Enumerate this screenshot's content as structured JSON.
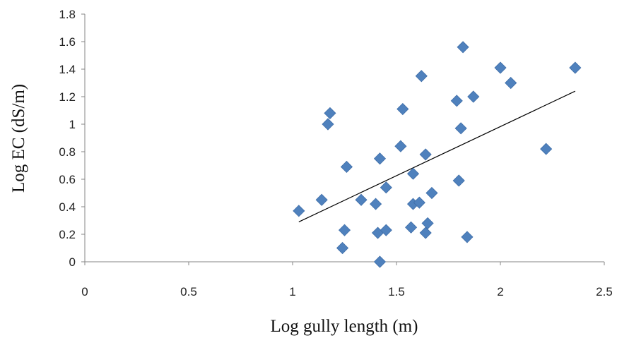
{
  "chart_data": {
    "type": "scatter",
    "title": "",
    "xlabel": "Log gully length (m)",
    "ylabel": "Log EC (dS/m)",
    "xlim": [
      0,
      2.5
    ],
    "ylim": [
      0,
      1.8
    ],
    "x_ticks": [
      0,
      0.5,
      1,
      1.5,
      2,
      2.5
    ],
    "x_tick_labels": [
      "0",
      "0.5",
      "1",
      "1.5",
      "2",
      "2.5"
    ],
    "y_ticks": [
      0,
      0.2,
      0.4,
      0.6,
      0.8,
      1,
      1.2,
      1.4,
      1.6,
      1.8
    ],
    "y_tick_labels": [
      "0",
      "0.2",
      "0.4",
      "0.6",
      "0.8",
      "1",
      "1.2",
      "1.4",
      "1.6",
      "1.8"
    ],
    "grid": false,
    "marker": "diamond",
    "marker_color": "#4f81bd",
    "trendline": {
      "type": "linear",
      "x": [
        1.03,
        2.36
      ],
      "y": [
        0.29,
        1.24
      ],
      "color": "#000000"
    },
    "series": [
      {
        "points": [
          [
            1.03,
            0.37
          ],
          [
            1.14,
            0.45
          ],
          [
            1.17,
            1.0
          ],
          [
            1.18,
            1.08
          ],
          [
            1.24,
            0.1
          ],
          [
            1.25,
            0.23
          ],
          [
            1.26,
            0.69
          ],
          [
            1.33,
            0.45
          ],
          [
            1.4,
            0.42
          ],
          [
            1.41,
            0.21
          ],
          [
            1.42,
            0.75
          ],
          [
            1.42,
            0.0
          ],
          [
            1.45,
            0.23
          ],
          [
            1.45,
            0.54
          ],
          [
            1.52,
            0.84
          ],
          [
            1.53,
            1.11
          ],
          [
            1.57,
            0.25
          ],
          [
            1.58,
            0.64
          ],
          [
            1.58,
            0.42
          ],
          [
            1.61,
            0.43
          ],
          [
            1.62,
            1.35
          ],
          [
            1.64,
            0.78
          ],
          [
            1.64,
            0.21
          ],
          [
            1.65,
            0.28
          ],
          [
            1.67,
            0.5
          ],
          [
            1.79,
            1.17
          ],
          [
            1.8,
            0.59
          ],
          [
            1.81,
            0.97
          ],
          [
            1.82,
            1.56
          ],
          [
            1.84,
            0.18
          ],
          [
            1.87,
            1.2
          ],
          [
            2.0,
            1.41
          ],
          [
            2.05,
            1.3
          ],
          [
            2.22,
            0.82
          ],
          [
            2.36,
            1.41
          ]
        ]
      }
    ]
  }
}
